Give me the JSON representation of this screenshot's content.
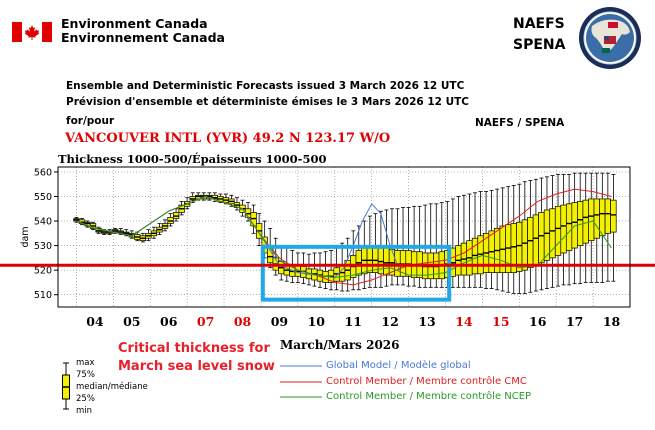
{
  "header": {
    "org_en": "Environment Canada",
    "org_fr": "Environnement Canada",
    "program_line1": "NAEFS",
    "program_line2": "SPENA",
    "issued_en": "Ensemble and Deterministic Forecasts issued 3 March 2026 12 UTC",
    "issued_fr": "Prévision d'ensemble et déterministe émises le 3 Mars 2026 12 UTC",
    "for_label": "for/pour",
    "naefs_spena": "NAEFS / SPENA",
    "station": "VANCOUVER INTL (YVR) 49.2 N  123.17 W/O"
  },
  "chart_data": {
    "type": "box",
    "title": "Thickness 1000-500/Épaisseurs 1000-500",
    "ylabel": "dam",
    "xlabel": "March/Mars 2026",
    "ylim": [
      505,
      562
    ],
    "yticks": [
      510,
      520,
      530,
      540,
      550,
      560
    ],
    "xlim": [
      3.0,
      18.5
    ],
    "day_ticks": [
      {
        "label": "04",
        "value": 4,
        "weekend": false
      },
      {
        "label": "05",
        "value": 5,
        "weekend": false
      },
      {
        "label": "06",
        "value": 6,
        "weekend": false
      },
      {
        "label": "07",
        "value": 7,
        "weekend": true
      },
      {
        "label": "08",
        "value": 8,
        "weekend": true
      },
      {
        "label": "09",
        "value": 9,
        "weekend": false
      },
      {
        "label": "10",
        "value": 10,
        "weekend": false
      },
      {
        "label": "11",
        "value": 11,
        "weekend": false
      },
      {
        "label": "12",
        "value": 12,
        "weekend": false
      },
      {
        "label": "13",
        "value": 13,
        "weekend": false
      },
      {
        "label": "14",
        "value": 14,
        "weekend": true
      },
      {
        "label": "15",
        "value": 15,
        "weekend": true
      },
      {
        "label": "16",
        "value": 16,
        "weekend": false
      },
      {
        "label": "17",
        "value": 17,
        "weekend": false
      },
      {
        "label": "18",
        "value": 18,
        "weekend": false
      }
    ],
    "boxes_columns": [
      "day",
      "min",
      "q25",
      "median",
      "q75",
      "max"
    ],
    "boxes": [
      [
        3.5,
        539.5,
        540,
        540.5,
        541,
        541.5
      ],
      [
        3.65,
        538.5,
        539,
        539.5,
        540.5,
        541
      ],
      [
        3.8,
        537.5,
        538,
        539,
        539.5,
        540
      ],
      [
        3.95,
        536.5,
        537,
        538,
        539,
        539.5
      ],
      [
        4.1,
        535,
        535.5,
        536,
        537,
        537.5
      ],
      [
        4.25,
        534.5,
        535,
        535.5,
        536,
        536.5
      ],
      [
        4.4,
        534.5,
        535,
        535.5,
        536,
        536.5
      ],
      [
        4.55,
        535,
        535.5,
        536,
        536.5,
        537
      ],
      [
        4.7,
        534.5,
        535,
        535.5,
        536,
        537
      ],
      [
        4.85,
        534,
        534.5,
        535,
        535.5,
        536.5
      ],
      [
        5.0,
        533,
        533.5,
        534.5,
        535,
        536
      ],
      [
        5.15,
        532,
        532.5,
        533.5,
        534.5,
        535.5
      ],
      [
        5.3,
        531.5,
        532,
        533,
        534,
        535
      ],
      [
        5.45,
        532,
        533,
        534,
        535,
        536.5
      ],
      [
        5.6,
        533,
        534,
        535,
        536,
        537.5
      ],
      [
        5.75,
        534.5,
        535.5,
        536.5,
        537.5,
        539
      ],
      [
        5.9,
        536,
        537,
        538,
        539,
        540.5
      ],
      [
        6.05,
        538,
        539,
        540,
        541.5,
        543
      ],
      [
        6.2,
        540,
        541,
        542,
        543.5,
        545
      ],
      [
        6.35,
        542.5,
        543.5,
        545,
        546.5,
        548
      ],
      [
        6.5,
        545,
        546,
        547,
        548,
        549.5
      ],
      [
        6.65,
        547.5,
        548.5,
        549,
        550,
        551.5
      ],
      [
        6.8,
        548.5,
        549,
        550,
        550.5,
        551.5
      ],
      [
        6.95,
        548.5,
        549,
        550,
        550.5,
        551.5
      ],
      [
        7.1,
        548.5,
        549,
        550,
        550.5,
        551.5
      ],
      [
        7.25,
        548,
        549,
        549.5,
        550.5,
        551.5
      ],
      [
        7.4,
        547.5,
        548,
        549,
        550,
        551
      ],
      [
        7.55,
        547,
        547.5,
        548.5,
        549.5,
        551
      ],
      [
        7.7,
        546,
        547,
        548,
        549,
        550.5
      ],
      [
        7.85,
        544.5,
        545.5,
        546.5,
        547.5,
        549.5
      ],
      [
        8.0,
        542,
        543.5,
        545,
        546.5,
        548.5
      ],
      [
        8.15,
        540,
        541.5,
        543,
        545,
        547.5
      ],
      [
        8.3,
        535,
        538,
        541,
        543.5,
        546.5
      ],
      [
        8.45,
        530,
        533,
        536,
        539,
        543
      ],
      [
        8.6,
        525,
        527,
        530,
        533.5,
        540
      ],
      [
        8.75,
        521,
        523,
        525.5,
        529,
        537
      ],
      [
        8.9,
        518,
        520,
        522.5,
        525,
        533
      ],
      [
        9.05,
        516,
        518.5,
        521,
        523.5,
        530
      ],
      [
        9.2,
        515.5,
        518,
        520,
        522.5,
        529
      ],
      [
        9.35,
        515,
        517.5,
        519.5,
        522,
        528
      ],
      [
        9.5,
        515,
        517.5,
        519.5,
        522,
        527
      ],
      [
        9.65,
        514.5,
        517,
        519.5,
        521.5,
        527
      ],
      [
        9.8,
        514,
        516.5,
        518.5,
        520.5,
        526.5
      ],
      [
        9.95,
        513.5,
        516,
        518.5,
        520.5,
        527
      ],
      [
        10.1,
        513,
        515.5,
        518,
        520,
        527
      ],
      [
        10.25,
        512.5,
        515,
        517.5,
        519.5,
        527.5
      ],
      [
        10.4,
        512,
        515,
        517.5,
        520,
        528
      ],
      [
        10.55,
        512,
        515.5,
        518.5,
        521,
        530
      ],
      [
        10.7,
        511.5,
        515.5,
        519,
        522,
        531
      ],
      [
        10.85,
        511.5,
        516,
        520,
        524,
        533
      ],
      [
        11.0,
        512,
        517,
        521.5,
        526,
        536
      ],
      [
        11.15,
        512,
        518,
        523,
        528,
        538
      ],
      [
        11.3,
        512.5,
        518.5,
        524,
        529,
        540
      ],
      [
        11.45,
        513,
        519,
        524,
        529.5,
        542
      ],
      [
        11.6,
        513,
        519,
        524,
        530,
        543
      ],
      [
        11.75,
        513,
        518.5,
        523.5,
        529.5,
        544
      ],
      [
        11.9,
        513.5,
        518,
        523,
        529,
        544.5
      ],
      [
        12.05,
        514,
        518,
        523,
        528.5,
        545
      ],
      [
        12.2,
        514,
        517.5,
        522.5,
        528,
        545
      ],
      [
        12.35,
        514,
        517.5,
        522.5,
        528,
        545.5
      ],
      [
        12.5,
        513.5,
        517.5,
        522.5,
        528,
        545.5
      ],
      [
        12.65,
        513.5,
        517,
        522,
        527.5,
        546
      ],
      [
        12.8,
        513,
        517,
        522,
        527.5,
        546
      ],
      [
        12.95,
        513,
        516.5,
        521.5,
        527,
        546.5
      ],
      [
        13.1,
        513,
        516.5,
        521.5,
        527,
        547
      ],
      [
        13.25,
        513,
        516.5,
        521.5,
        527,
        547
      ],
      [
        13.4,
        513,
        516.5,
        522,
        527.5,
        547.5
      ],
      [
        13.55,
        513,
        517,
        522.5,
        528,
        548
      ],
      [
        13.7,
        513,
        517.5,
        523,
        529,
        549
      ],
      [
        13.85,
        513,
        518,
        524,
        530,
        550
      ],
      [
        14.0,
        513,
        518,
        524.5,
        531,
        550.5
      ],
      [
        14.15,
        513,
        518,
        525,
        532,
        551
      ],
      [
        14.3,
        513,
        518.5,
        526,
        533,
        551.5
      ],
      [
        14.45,
        513,
        518.5,
        526.5,
        534,
        552
      ],
      [
        14.6,
        512.5,
        519,
        527,
        535,
        552
      ],
      [
        14.75,
        512.5,
        519,
        527.5,
        536,
        552.5
      ],
      [
        14.9,
        512,
        519,
        528,
        537,
        553
      ],
      [
        15.05,
        511.5,
        519,
        528.5,
        538,
        553.5
      ],
      [
        15.2,
        511,
        519,
        529,
        538.5,
        554
      ],
      [
        15.35,
        510.5,
        519,
        529.5,
        539,
        554.5
      ],
      [
        15.5,
        510.5,
        519.5,
        530,
        539.5,
        555
      ],
      [
        15.65,
        510.5,
        520,
        531,
        540.5,
        556
      ],
      [
        15.8,
        511,
        521,
        532,
        541.5,
        556.5
      ],
      [
        15.95,
        511.5,
        522,
        533,
        542.5,
        557
      ],
      [
        16.1,
        512,
        523,
        534,
        543.5,
        557.5
      ],
      [
        16.25,
        512.5,
        524,
        535,
        544.5,
        558
      ],
      [
        16.4,
        513,
        525,
        536,
        545,
        558.5
      ],
      [
        16.55,
        513.5,
        526,
        537,
        546,
        559
      ],
      [
        16.7,
        514,
        527,
        538,
        546.5,
        559
      ],
      [
        16.85,
        514,
        528,
        539,
        547,
        559
      ],
      [
        17.0,
        514.5,
        529,
        539.5,
        547.5,
        559.5
      ],
      [
        17.15,
        514.5,
        530,
        540.5,
        548,
        559.5
      ],
      [
        17.3,
        515,
        531,
        541.5,
        548.5,
        559.5
      ],
      [
        17.45,
        515,
        532,
        542,
        549,
        559.5
      ],
      [
        17.6,
        515,
        533,
        542.5,
        549,
        559.5
      ],
      [
        17.75,
        515,
        534,
        543,
        549,
        559.5
      ],
      [
        17.9,
        515.5,
        535,
        543,
        549,
        559.5
      ],
      [
        18.05,
        515.5,
        535.5,
        542.5,
        548.5,
        559
      ]
    ],
    "series": [
      {
        "name": "Global Model / Modèle global",
        "color": "#4a78d8",
        "x": [
          3.5,
          4,
          5,
          6,
          7,
          8,
          8.5,
          9,
          9.5,
          10,
          10.5,
          10.75,
          11,
          11.25,
          11.5,
          11.75,
          12,
          12.25
        ],
        "y": [
          540,
          537,
          534,
          544,
          550,
          545,
          534,
          522,
          519,
          518,
          517,
          521,
          530,
          540,
          547,
          543,
          530,
          520
        ]
      },
      {
        "name": "Control Member / Membre contrôle CMC",
        "color": "#e02020",
        "x": [
          3.5,
          4,
          5,
          6,
          7,
          8,
          8.5,
          9,
          9.5,
          10,
          10.5,
          11,
          11.5,
          12,
          12.5,
          13,
          13.5,
          14,
          14.5,
          15,
          15.5,
          16,
          16.5,
          17,
          17.5,
          18
        ],
        "y": [
          540,
          537,
          534,
          544,
          550,
          545,
          534,
          525,
          520,
          518,
          515,
          514,
          516,
          519,
          522,
          523,
          524,
          527,
          532,
          537,
          542,
          548,
          551,
          553,
          552,
          550
        ]
      },
      {
        "name": "Control Member / Membre contrôle NCEP",
        "color": "#2a9a2a",
        "x": [
          3.5,
          4,
          5,
          6,
          7,
          8,
          8.5,
          9,
          9.5,
          10,
          10.5,
          11,
          11.5,
          12,
          12.5,
          13,
          13.5,
          14,
          14.5,
          15,
          15.5,
          16,
          16.5,
          17,
          17.5,
          18
        ],
        "y": [
          540,
          537,
          534,
          544,
          550,
          545,
          534,
          524,
          520,
          518,
          517,
          518,
          520,
          521,
          518,
          518,
          519,
          523,
          526,
          524,
          521,
          522,
          530,
          538,
          540,
          529
        ]
      }
    ],
    "critical_thickness": 522
  },
  "annotations": {
    "critical_note": "Critical thickness for March sea level snow",
    "box_key": [
      "max",
      "75%",
      "median/médiane",
      "25%",
      "min"
    ]
  },
  "colors": {
    "box_fill": "#f3f000",
    "critical_line": "#e00000",
    "highlight_frame": "#22a8e8",
    "weekend_day": "#e00000"
  }
}
